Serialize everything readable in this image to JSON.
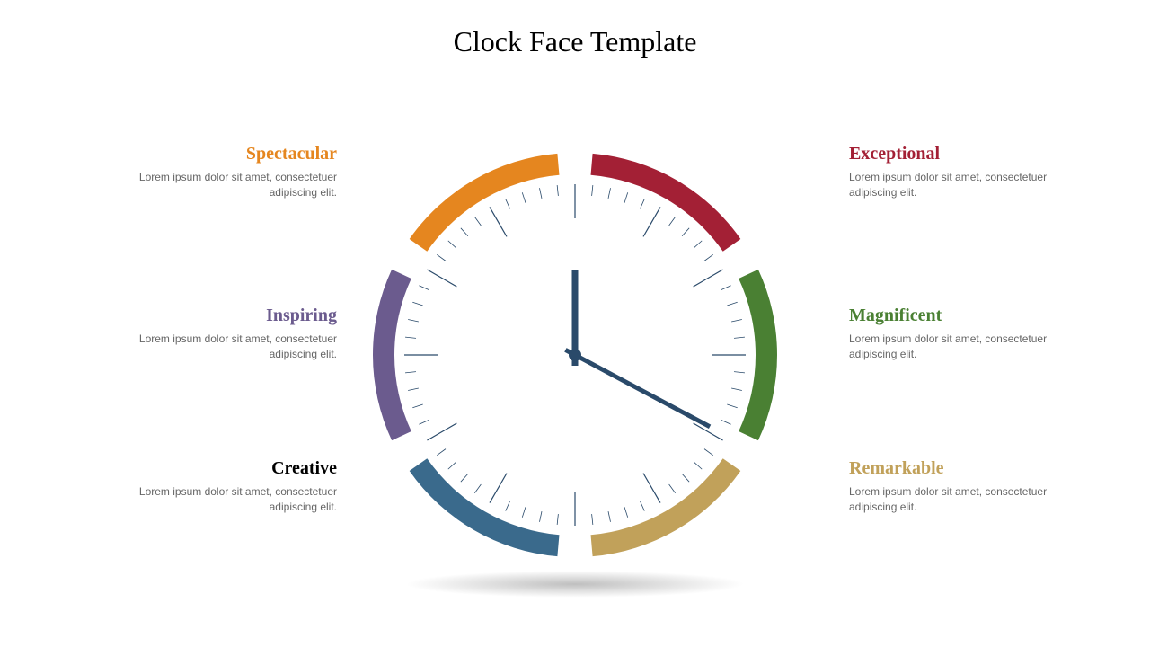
{
  "title": "Clock Face Template",
  "segments": [
    {
      "start_deg": 5,
      "end_deg": 55,
      "color": "#a32035",
      "label": "Exceptional",
      "side": "right",
      "pos": "top"
    },
    {
      "start_deg": 65,
      "end_deg": 115,
      "color": "#4a8033",
      "label": "Magnificent",
      "side": "right",
      "pos": "mid"
    },
    {
      "start_deg": 125,
      "end_deg": 175,
      "color": "#c1a15a",
      "label": "Remarkable",
      "side": "right",
      "pos": "bot"
    },
    {
      "start_deg": 185,
      "end_deg": 235,
      "color": "#3a6a8c",
      "label": "Creative",
      "side": "left",
      "pos": "bot",
      "label_color": "#000000"
    },
    {
      "start_deg": 245,
      "end_deg": 295,
      "color": "#6b5b8e",
      "label": "Inspiring",
      "side": "left",
      "pos": "mid"
    },
    {
      "start_deg": 305,
      "end_deg": 355,
      "color": "#e5861f",
      "label": "Spectacular",
      "side": "left",
      "pos": "top"
    }
  ],
  "body_text": "Lorem ipsum dolor sit amet, consectetuer adipiscing elit.",
  "clock": {
    "outer_radius": 225,
    "arc_thickness": 24,
    "tick_outer_radius": 190,
    "hour_tick_len": 38,
    "minute_tick_len": 12,
    "tick_color": "#2a4a6a",
    "tick_width_major": 1.2,
    "tick_width_minor": 0.8,
    "hand_color": "#2a4a6a",
    "hour_hand_len": 95,
    "minute_hand_len": 170,
    "hour_angle": 0,
    "minute_angle": 118,
    "hub_radius": 7
  },
  "colors": {
    "background": "#ffffff",
    "title": "#000000",
    "body_text": "#666666"
  },
  "fonts": {
    "title_size": 32,
    "heading_size": 20,
    "body_size": 12
  }
}
